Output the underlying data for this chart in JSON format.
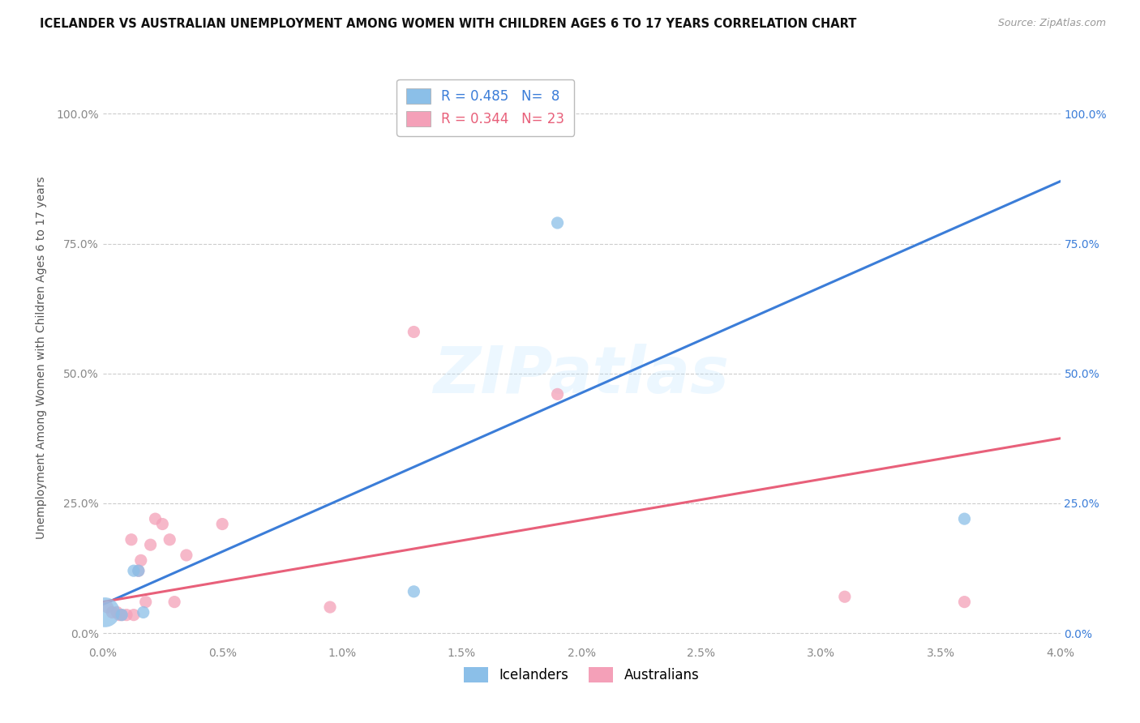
{
  "title": "ICELANDER VS AUSTRALIAN UNEMPLOYMENT AMONG WOMEN WITH CHILDREN AGES 6 TO 17 YEARS CORRELATION CHART",
  "source": "Source: ZipAtlas.com",
  "ylabel": "Unemployment Among Women with Children Ages 6 to 17 years",
  "xlabel_ticks": [
    "0.0%",
    "0.5%",
    "1.0%",
    "1.5%",
    "2.0%",
    "2.5%",
    "3.0%",
    "3.5%",
    "4.0%"
  ],
  "xlabel_vals": [
    0.0,
    0.005,
    0.01,
    0.015,
    0.02,
    0.025,
    0.03,
    0.035,
    0.04
  ],
  "ylabel_ticks": [
    "0.0%",
    "25.0%",
    "50.0%",
    "75.0%",
    "100.0%"
  ],
  "ylabel_vals": [
    0.0,
    0.25,
    0.5,
    0.75,
    1.0
  ],
  "xlim": [
    0.0,
    0.04
  ],
  "ylim": [
    -0.02,
    1.08
  ],
  "icelanders_R": 0.485,
  "icelanders_N": 8,
  "australians_R": 0.344,
  "australians_N": 23,
  "icelanders_color": "#8BBFE8",
  "australians_color": "#F4A0B8",
  "icelanders_line_color": "#3B7DD8",
  "australians_line_color": "#E8607A",
  "watermark": "ZIPatlas",
  "icelanders_x": [
    0.0001,
    0.0008,
    0.0013,
    0.0015,
    0.0017,
    0.013,
    0.019,
    0.036
  ],
  "icelanders_y": [
    0.04,
    0.035,
    0.12,
    0.12,
    0.04,
    0.08,
    0.79,
    0.22
  ],
  "icelanders_sizes": [
    700,
    120,
    120,
    120,
    120,
    120,
    120,
    120
  ],
  "australians_x": [
    0.0002,
    0.0004,
    0.0006,
    0.0007,
    0.0008,
    0.001,
    0.0012,
    0.0013,
    0.0015,
    0.0016,
    0.0018,
    0.002,
    0.0022,
    0.0025,
    0.0028,
    0.003,
    0.0035,
    0.005,
    0.0095,
    0.013,
    0.019,
    0.031,
    0.036
  ],
  "australians_y": [
    0.05,
    0.04,
    0.04,
    0.035,
    0.035,
    0.035,
    0.18,
    0.035,
    0.12,
    0.14,
    0.06,
    0.17,
    0.22,
    0.21,
    0.18,
    0.06,
    0.15,
    0.21,
    0.05,
    0.58,
    0.46,
    0.07,
    0.06
  ],
  "australians_sizes": [
    120,
    120,
    120,
    120,
    120,
    120,
    120,
    120,
    120,
    120,
    120,
    120,
    120,
    120,
    120,
    120,
    120,
    120,
    120,
    120,
    120,
    120,
    120
  ],
  "blue_line_x": [
    0.0,
    0.04
  ],
  "blue_line_y": [
    0.055,
    0.87
  ],
  "pink_line_x": [
    0.0,
    0.04
  ],
  "pink_line_y": [
    0.06,
    0.375
  ],
  "background_color": "#FFFFFF",
  "grid_color": "#CCCCCC",
  "grid_linestyle": "--",
  "ylabel_color_left": "#888888",
  "ylabel_color_right": "#3B7DD8",
  "xtick_color": "#888888"
}
